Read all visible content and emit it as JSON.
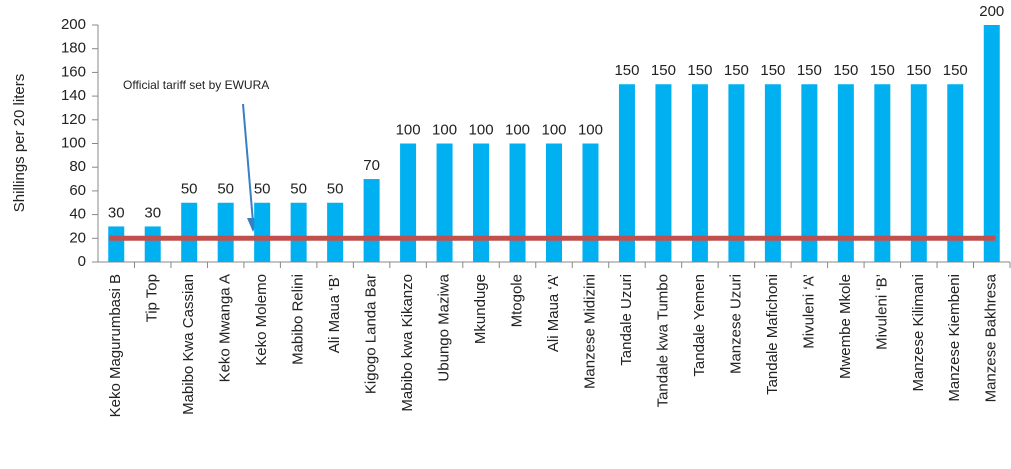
{
  "chart_data": {
    "type": "bar",
    "y_label": "Shillings per 20 liters",
    "annotation": "Official tariff set by EWURA",
    "categories": [
      "Keko Magurumbasi B",
      "Tip Top",
      "Mabibo Kwa Cassian",
      "Keko Mwanga A",
      "Keko Molemo",
      "Mabibo Relini",
      "Ali Maua ‘B’",
      "Kigogo Landa Bar",
      "Mabibo kwa Kikanzo",
      "Ubungo Maziwa",
      "Mkunduge",
      "Mtogole",
      "Ali Maua ‘A’",
      "Manzese Midizini",
      "Tandale Uzuri",
      "Tandale kwa Tumbo",
      "Tandale Yemen",
      "Manzese Uzuri",
      "Tandale Mafichoni",
      "Mivuleni ‘A’",
      "Mwembe Mkole",
      "Mivuleni ‘B’",
      "Manzese Kilimani",
      "Manzese Kiembeni",
      "Manzese Bakhresa"
    ],
    "values": [
      30,
      30,
      50,
      50,
      50,
      50,
      50,
      70,
      100,
      100,
      100,
      100,
      100,
      100,
      150,
      150,
      150,
      150,
      150,
      150,
      150,
      150,
      150,
      150,
      200
    ],
    "color": "#00b0f0",
    "reference_value": 20,
    "reference_color": "#c0504d",
    "ylim": [
      0,
      200
    ],
    "yticks": [
      0,
      20,
      40,
      60,
      80,
      100,
      120,
      140,
      160,
      180,
      200
    ],
    "grid": false
  }
}
